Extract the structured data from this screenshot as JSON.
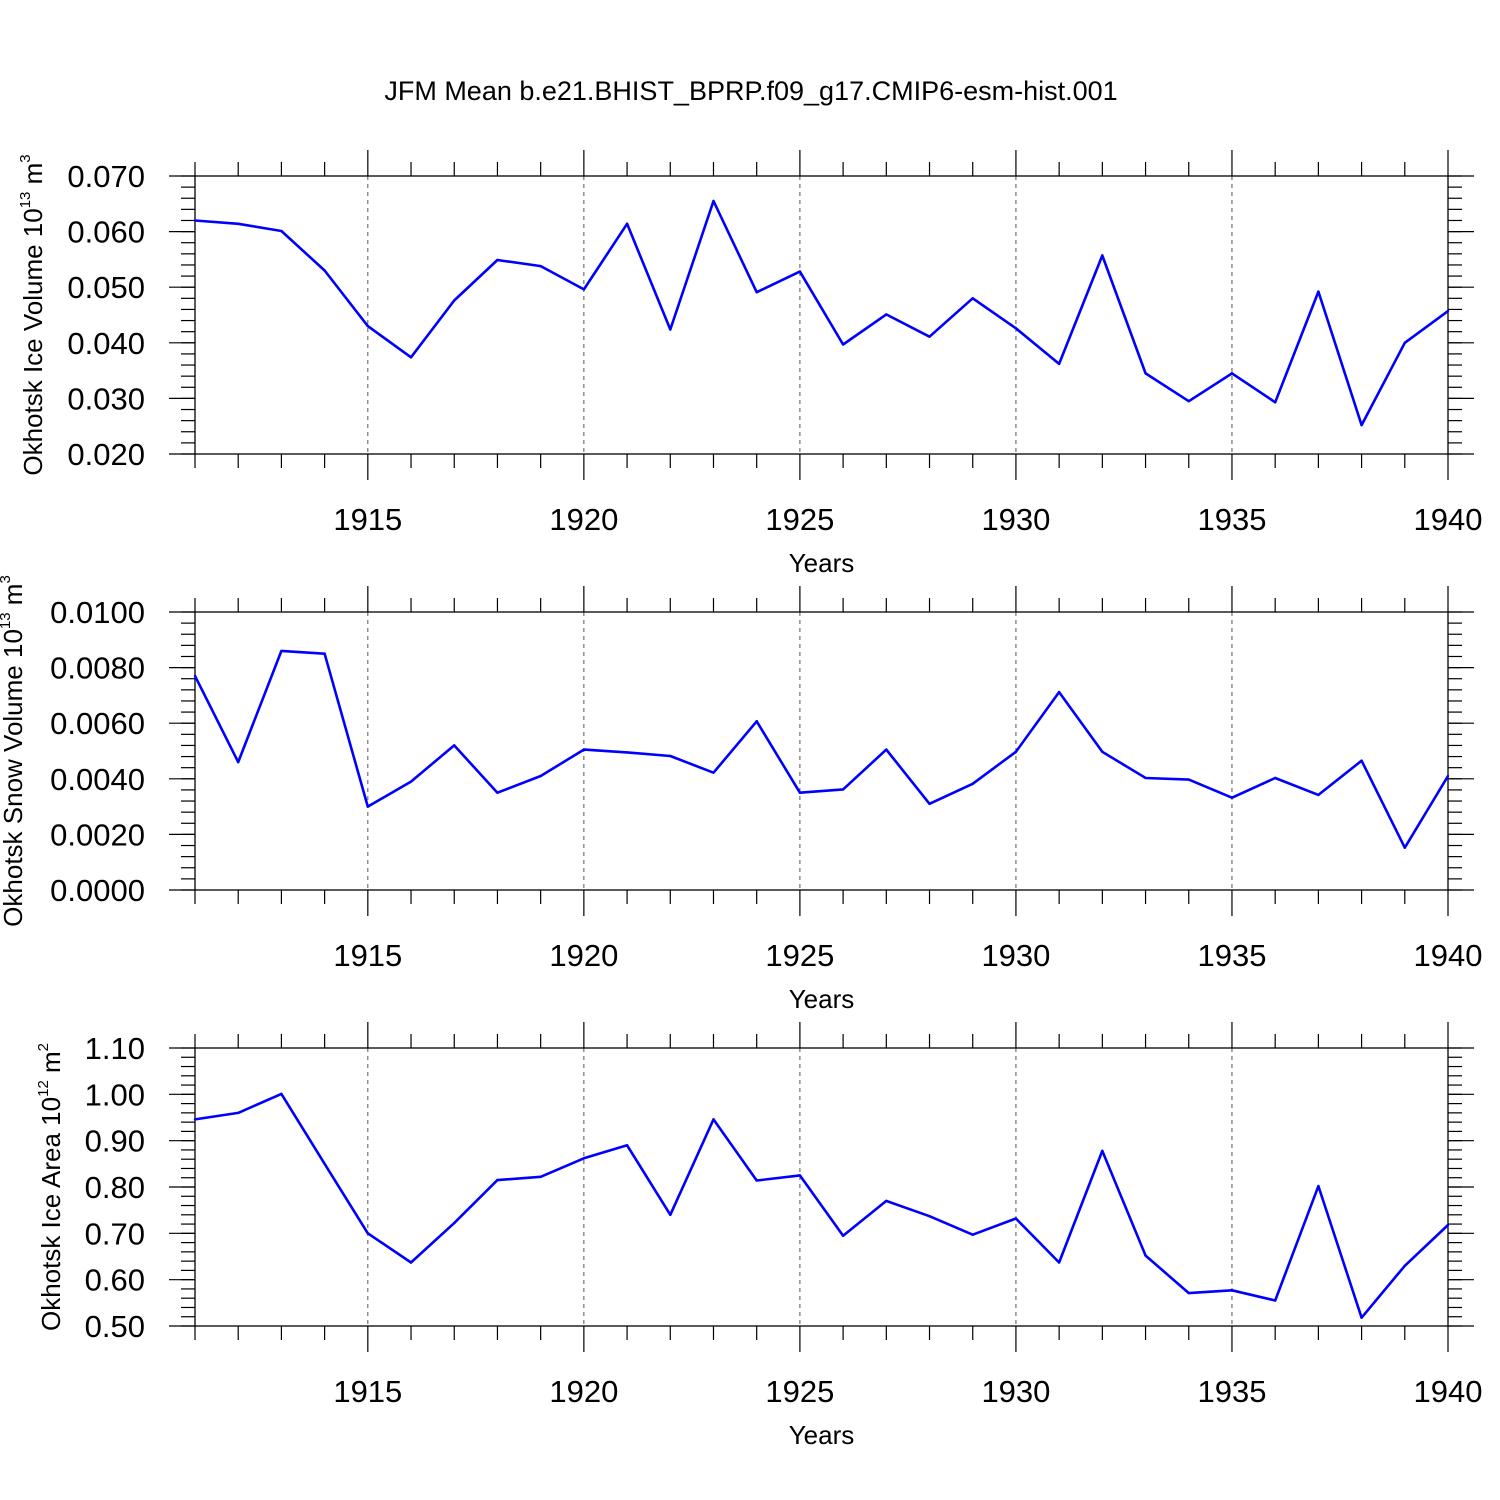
{
  "title": "JFM Mean b.e21.BHIST_BPRP.f09_g17.CMIP6-esm-hist.001",
  "line_color": "#0000ff",
  "chart_data": [
    {
      "type": "line",
      "ylabel": {
        "text": "Okhotsk Ice Volume 10",
        "exp": "13",
        "unit": " m",
        "unit_exp": "3"
      },
      "xlabel": "Years",
      "xlim": [
        1911,
        1940
      ],
      "ylim": [
        0.02,
        0.07
      ],
      "x_ticks": [
        1915,
        1920,
        1925,
        1930,
        1935,
        1940
      ],
      "x_tick_labels": [
        "1915",
        "1920",
        "1925",
        "1930",
        "1935",
        "1940"
      ],
      "y_ticks": [
        0.02,
        0.03,
        0.04,
        0.05,
        0.06,
        0.07
      ],
      "y_tick_labels": [
        "0.020",
        "0.030",
        "0.040",
        "0.050",
        "0.060",
        "0.070"
      ],
      "y_minor_step": 0.002,
      "grid": "vertical dashed at major x ticks",
      "x": [
        1911,
        1912,
        1913,
        1914,
        1915,
        1916,
        1917,
        1918,
        1919,
        1920,
        1921,
        1922,
        1923,
        1924,
        1925,
        1926,
        1927,
        1928,
        1929,
        1930,
        1931,
        1932,
        1933,
        1934,
        1935,
        1936,
        1937,
        1938,
        1939,
        1940
      ],
      "values": [
        0.062,
        0.0614,
        0.0601,
        0.053,
        0.043,
        0.0374,
        0.0476,
        0.0549,
        0.0538,
        0.0496,
        0.0614,
        0.0424,
        0.0655,
        0.0491,
        0.0528,
        0.0397,
        0.0451,
        0.0411,
        0.048,
        0.0426,
        0.0362,
        0.0557,
        0.0345,
        0.0295,
        0.0345,
        0.0293,
        0.0492,
        0.0252,
        0.04,
        0.0457
      ]
    },
    {
      "type": "line",
      "ylabel": {
        "text": "Okhotsk Snow Volume 10",
        "exp": "13",
        "unit": " m",
        "unit_exp": "3"
      },
      "xlabel": "Years",
      "xlim": [
        1911,
        1940
      ],
      "ylim": [
        0.0,
        0.01
      ],
      "x_ticks": [
        1915,
        1920,
        1925,
        1930,
        1935,
        1940
      ],
      "x_tick_labels": [
        "1915",
        "1920",
        "1925",
        "1930",
        "1935",
        "1940"
      ],
      "y_ticks": [
        0.0,
        0.002,
        0.004,
        0.006,
        0.008,
        0.01
      ],
      "y_tick_labels": [
        "0.0000",
        "0.0020",
        "0.0040",
        "0.0060",
        "0.0080",
        "0.0100"
      ],
      "y_minor_step": 0.0004,
      "grid": "vertical dashed at major x ticks",
      "x": [
        1911,
        1912,
        1913,
        1914,
        1915,
        1916,
        1917,
        1918,
        1919,
        1920,
        1921,
        1922,
        1923,
        1924,
        1925,
        1926,
        1927,
        1928,
        1929,
        1930,
        1931,
        1932,
        1933,
        1934,
        1935,
        1936,
        1937,
        1938,
        1939,
        1940
      ],
      "values": [
        0.0077,
        0.0046,
        0.0086,
        0.0085,
        0.003,
        0.0039,
        0.0052,
        0.0035,
        0.0041,
        0.00505,
        0.00495,
        0.00482,
        0.00422,
        0.00607,
        0.0035,
        0.00362,
        0.00505,
        0.0031,
        0.00382,
        0.00497,
        0.00712,
        0.00497,
        0.00403,
        0.00397,
        0.00332,
        0.00403,
        0.00342,
        0.00465,
        0.00152,
        0.0041
      ]
    },
    {
      "type": "line",
      "ylabel": {
        "text": "Okhotsk Ice Area 10",
        "exp": "12",
        "unit": " m",
        "unit_exp": "2"
      },
      "xlabel": "Years",
      "xlim": [
        1911,
        1940
      ],
      "ylim": [
        0.5,
        1.1
      ],
      "x_ticks": [
        1915,
        1920,
        1925,
        1930,
        1935,
        1940
      ],
      "x_tick_labels": [
        "1915",
        "1920",
        "1925",
        "1930",
        "1935",
        "1940"
      ],
      "y_ticks": [
        0.5,
        0.6,
        0.7,
        0.8,
        0.9,
        1.0,
        1.1
      ],
      "y_tick_labels": [
        "0.50",
        "0.60",
        "0.70",
        "0.80",
        "0.90",
        "1.00",
        "1.10"
      ],
      "y_minor_step": 0.02,
      "grid": "vertical dashed at major x ticks",
      "x": [
        1911,
        1912,
        1913,
        1914,
        1915,
        1916,
        1917,
        1918,
        1919,
        1920,
        1921,
        1922,
        1923,
        1924,
        1925,
        1926,
        1927,
        1928,
        1929,
        1930,
        1931,
        1932,
        1933,
        1934,
        1935,
        1936,
        1937,
        1938,
        1939,
        1940
      ],
      "values": [
        0.946,
        0.96,
        1.001,
        0.85,
        0.7,
        0.637,
        0.722,
        0.815,
        0.822,
        0.862,
        0.89,
        0.74,
        0.946,
        0.814,
        0.825,
        0.695,
        0.77,
        0.737,
        0.697,
        0.732,
        0.637,
        0.878,
        0.652,
        0.571,
        0.577,
        0.555,
        0.802,
        0.518,
        0.63,
        0.718
      ]
    }
  ]
}
